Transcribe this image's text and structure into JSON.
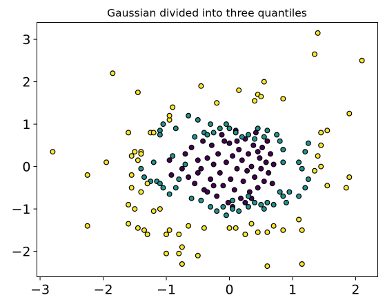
{
  "chart_data": {
    "type": "scatter",
    "title": "Gaussian divided into three quantiles",
    "xlabel": "",
    "ylabel": "",
    "xlim": [
      -3.05,
      2.35
    ],
    "ylim": [
      -2.6,
      3.4
    ],
    "xticks": [
      -3,
      -2,
      -1,
      0,
      1,
      2
    ],
    "yticks": [
      -2,
      -1,
      0,
      1,
      2,
      3
    ],
    "grid": false,
    "legend": "none",
    "colors": {
      "inner": "#440154",
      "middle": "#21918c",
      "outer": "#fde725",
      "edge": "#000000"
    },
    "series": [
      {
        "class": "inner",
        "points": [
          [
            -0.95,
            0.15
          ],
          [
            -0.92,
            -0.2
          ],
          [
            -0.75,
            -0.05
          ],
          [
            -0.7,
            0.3
          ],
          [
            -0.65,
            -0.25
          ],
          [
            -0.6,
            0.45
          ],
          [
            -0.55,
            -0.4
          ],
          [
            -0.5,
            0.15
          ],
          [
            -0.45,
            -0.05
          ],
          [
            -0.42,
            0.6
          ],
          [
            -0.4,
            -0.55
          ],
          [
            -0.35,
            0.2
          ],
          [
            -0.3,
            -0.3
          ],
          [
            -0.28,
            0.5
          ],
          [
            -0.25,
            0.05
          ],
          [
            -0.2,
            -0.7
          ],
          [
            -0.18,
            0.3
          ],
          [
            -0.15,
            -0.15
          ],
          [
            -0.12,
            0.75
          ],
          [
            -0.1,
            -0.45
          ],
          [
            -0.05,
            0.1
          ],
          [
            -0.02,
            -0.85
          ],
          [
            0.0,
            0.55
          ],
          [
            0.02,
            -0.3
          ],
          [
            0.05,
            0.25
          ],
          [
            0.08,
            -0.55
          ],
          [
            0.1,
            0.85
          ],
          [
            0.12,
            -0.05
          ],
          [
            0.15,
            0.4
          ],
          [
            0.18,
            -0.75
          ],
          [
            0.2,
            0.15
          ],
          [
            0.22,
            -0.35
          ],
          [
            0.25,
            0.65
          ],
          [
            0.28,
            -0.1
          ],
          [
            0.3,
            0.3
          ],
          [
            0.32,
            -0.6
          ],
          [
            0.35,
            0.0
          ],
          [
            0.38,
            0.5
          ],
          [
            0.4,
            -0.25
          ],
          [
            0.42,
            0.8
          ],
          [
            0.45,
            -0.5
          ],
          [
            0.48,
            0.2
          ],
          [
            0.5,
            -0.05
          ],
          [
            0.52,
            0.45
          ],
          [
            0.55,
            -0.35
          ],
          [
            0.58,
            0.1
          ],
          [
            0.6,
            0.6
          ],
          [
            0.62,
            -0.15
          ],
          [
            0.65,
            0.3
          ],
          [
            0.68,
            -0.4
          ],
          [
            0.7,
            0.05
          ],
          [
            -0.08,
            0.6
          ],
          [
            0.12,
            0.6
          ],
          [
            -0.35,
            -0.6
          ],
          [
            0.35,
            -0.75
          ],
          [
            0.45,
            0.35
          ],
          [
            -0.5,
            -0.15
          ],
          [
            0.05,
            -0.95
          ],
          [
            0.25,
            -0.85
          ],
          [
            -0.25,
            -0.45
          ]
        ]
      },
      {
        "class": "middle",
        "points": [
          [
            -1.1,
            0.85
          ],
          [
            -1.1,
            0.75
          ],
          [
            -1.2,
            0.1
          ],
          [
            -1.15,
            -0.35
          ],
          [
            -1.1,
            -0.4
          ],
          [
            -1.05,
            -0.5
          ],
          [
            -0.95,
            -0.65
          ],
          [
            -1.25,
            -0.35
          ],
          [
            -1.4,
            -0.05
          ],
          [
            -1.35,
            -0.25
          ],
          [
            -0.8,
            -0.3
          ],
          [
            -0.7,
            0.05
          ],
          [
            -0.65,
            1.2
          ],
          [
            -0.5,
            1.1
          ],
          [
            -0.4,
            0.8
          ],
          [
            -0.35,
            0.75
          ],
          [
            -0.3,
            1.0
          ],
          [
            -0.55,
            0.7
          ],
          [
            -0.85,
            0.9
          ],
          [
            -1.05,
            1.0
          ],
          [
            -0.9,
            0.25
          ],
          [
            -0.85,
            -0.5
          ],
          [
            -0.6,
            -0.75
          ],
          [
            -0.45,
            -0.8
          ],
          [
            -0.3,
            -0.95
          ],
          [
            -0.2,
            -1.05
          ],
          [
            -0.1,
            -0.95
          ],
          [
            -0.05,
            -1.15
          ],
          [
            0.05,
            -1.0
          ],
          [
            0.15,
            -1.05
          ],
          [
            0.3,
            -0.95
          ],
          [
            0.4,
            -0.85
          ],
          [
            0.5,
            -0.9
          ],
          [
            0.55,
            -1.0
          ],
          [
            0.6,
            -0.85
          ],
          [
            0.7,
            -0.9
          ],
          [
            0.8,
            -0.6
          ],
          [
            0.85,
            -0.7
          ],
          [
            0.9,
            -0.85
          ],
          [
            0.95,
            -0.6
          ],
          [
            1.1,
            -0.7
          ],
          [
            1.2,
            -0.5
          ],
          [
            1.15,
            -0.05
          ],
          [
            1.1,
            0.1
          ],
          [
            1.25,
            0.55
          ],
          [
            1.2,
            0.35
          ],
          [
            1.25,
            -0.3
          ],
          [
            0.85,
            0.1
          ],
          [
            0.85,
            0.4
          ],
          [
            0.8,
            0.6
          ],
          [
            0.75,
            0.75
          ],
          [
            0.6,
            0.85
          ],
          [
            0.55,
            0.7
          ],
          [
            0.45,
            0.9
          ],
          [
            0.4,
            0.65
          ],
          [
            0.3,
            0.75
          ],
          [
            0.2,
            0.7
          ],
          [
            0.1,
            0.8
          ],
          [
            0.0,
            0.9
          ],
          [
            -0.05,
            1.0
          ],
          [
            -0.25,
            0.8
          ],
          [
            -0.15,
            0.9
          ],
          [
            0.05,
            -0.8
          ],
          [
            0.3,
            -0.7
          ]
        ]
      },
      {
        "class": "outer",
        "points": [
          [
            -2.8,
            0.35
          ],
          [
            -2.25,
            -0.2
          ],
          [
            -2.25,
            -1.4
          ],
          [
            -1.95,
            0.1
          ],
          [
            -1.85,
            2.2
          ],
          [
            -1.6,
            0.8
          ],
          [
            -1.6,
            -0.9
          ],
          [
            -1.55,
            -0.5
          ],
          [
            -1.55,
            -0.2
          ],
          [
            -1.5,
            0.35
          ],
          [
            -1.45,
            0.15
          ],
          [
            -1.4,
            0.35
          ],
          [
            -1.45,
            1.75
          ],
          [
            -1.35,
            -1.5
          ],
          [
            -1.3,
            -1.6
          ],
          [
            -1.45,
            -1.45
          ],
          [
            -1.6,
            -1.35
          ],
          [
            -1.55,
            0.25
          ],
          [
            -1.4,
            0.3
          ],
          [
            -1.4,
            -0.6
          ],
          [
            -1.25,
            0.8
          ],
          [
            -1.2,
            0.8
          ],
          [
            -1.2,
            -1.05
          ],
          [
            -1.1,
            -1.0
          ],
          [
            -1.0,
            -2.05
          ],
          [
            -0.95,
            -1.5
          ],
          [
            -0.95,
            1.1
          ],
          [
            -0.95,
            1.2
          ],
          [
            -0.9,
            1.4
          ],
          [
            -0.8,
            -2.05
          ],
          [
            -0.75,
            -1.9
          ],
          [
            -0.75,
            -2.3
          ],
          [
            -0.8,
            -1.6
          ],
          [
            -1.0,
            -1.6
          ],
          [
            -1.5,
            -1.0
          ],
          [
            -1.3,
            -0.4
          ],
          [
            -0.65,
            -1.4
          ],
          [
            -0.5,
            -2.1
          ],
          [
            -0.4,
            -1.45
          ],
          [
            -0.45,
            1.9
          ],
          [
            -0.2,
            1.5
          ],
          [
            0.0,
            -1.45
          ],
          [
            0.1,
            -1.45
          ],
          [
            0.15,
            1.8
          ],
          [
            0.25,
            -1.6
          ],
          [
            0.35,
            -1.35
          ],
          [
            0.4,
            1.55
          ],
          [
            0.45,
            -1.55
          ],
          [
            0.45,
            1.7
          ],
          [
            0.5,
            1.65
          ],
          [
            0.55,
            2.0
          ],
          [
            0.6,
            -1.55
          ],
          [
            0.6,
            -2.35
          ],
          [
            0.7,
            -1.4
          ],
          [
            0.85,
            1.6
          ],
          [
            0.85,
            -1.5
          ],
          [
            1.1,
            -1.25
          ],
          [
            1.15,
            -1.5
          ],
          [
            1.15,
            -2.3
          ],
          [
            1.4,
            3.15
          ],
          [
            1.35,
            2.65
          ],
          [
            2.1,
            2.5
          ],
          [
            1.9,
            1.25
          ],
          [
            1.55,
            0.85
          ],
          [
            1.45,
            0.8
          ],
          [
            1.45,
            0.5
          ],
          [
            1.45,
            0.0
          ],
          [
            1.55,
            -0.45
          ],
          [
            1.85,
            -0.5
          ],
          [
            1.9,
            -0.25
          ],
          [
            1.4,
            0.25
          ],
          [
            1.35,
            -0.1
          ]
        ]
      }
    ]
  }
}
